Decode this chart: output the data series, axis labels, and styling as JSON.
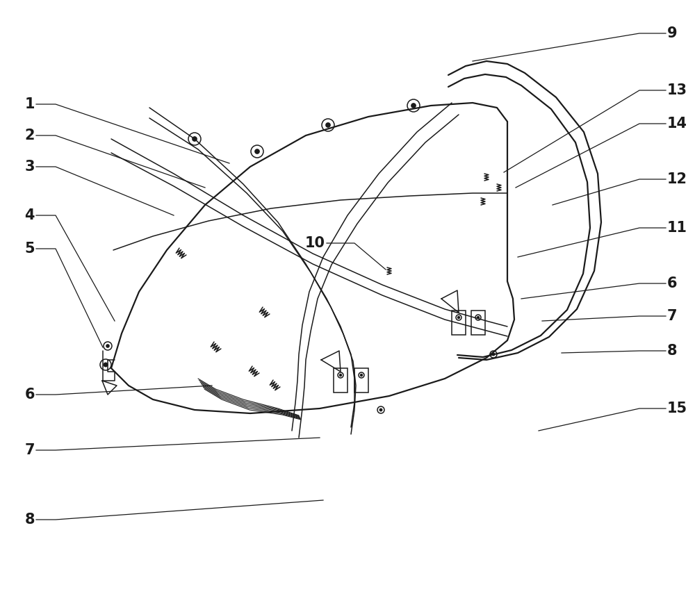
{
  "background_color": "#ffffff",
  "line_color": "#1a1a1a",
  "fig_width": 10.0,
  "fig_height": 8.68,
  "label_fontsize": 15,
  "lw_main": 1.6,
  "lw_thin": 1.1,
  "lw_leader": 0.9
}
